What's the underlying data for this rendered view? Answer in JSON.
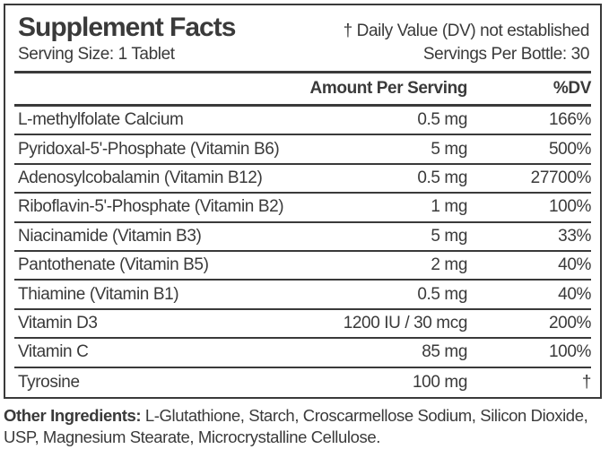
{
  "label": {
    "title": "Supplement Facts",
    "dv_note": "† Daily Value (DV) not established",
    "serving_size": "Serving Size: 1 Tablet",
    "servings_per_bottle": "Servings Per Bottle: 30",
    "columns": {
      "amount": "Amount Per Serving",
      "dv": "%DV"
    },
    "rows": [
      {
        "name": "L-methylfolate Calcium",
        "amount": "0.5 mg",
        "dv": "166%"
      },
      {
        "name": "Pyridoxal-5'-Phosphate (Vitamin B6)",
        "amount": "5 mg",
        "dv": "500%"
      },
      {
        "name": "Adenosylcobalamin (Vitamin B12)",
        "amount": "0.5 mg",
        "dv": "27700%"
      },
      {
        "name": "Riboflavin-5'-Phosphate (Vitamin B2)",
        "amount": "1 mg",
        "dv": "100%"
      },
      {
        "name": "Niacinamide (Vitamin B3)",
        "amount": "5 mg",
        "dv": "33%"
      },
      {
        "name": "Pantothenate (Vitamin B5)",
        "amount": "2 mg",
        "dv": "40%"
      },
      {
        "name": "Thiamine (Vitamin B1)",
        "amount": "0.5 mg",
        "dv": "40%"
      },
      {
        "name": "Vitamin D3",
        "amount": "1200 IU / 30 mcg",
        "dv": "200%"
      },
      {
        "name": "Vitamin C",
        "amount": "85 mg",
        "dv": "100%"
      },
      {
        "name": "Tyrosine",
        "amount": "100 mg",
        "dv": "†"
      }
    ],
    "other_ingredients_label": "Other Ingredients:",
    "other_ingredients_text": " L-Glutathione, Starch, Croscarmellose Sodium, Silicon Dioxide, USP, Magnesium Stearate, Microcrystalline Cellulose.",
    "colors": {
      "text": "#3a3a3a",
      "background": "#ffffff"
    }
  }
}
